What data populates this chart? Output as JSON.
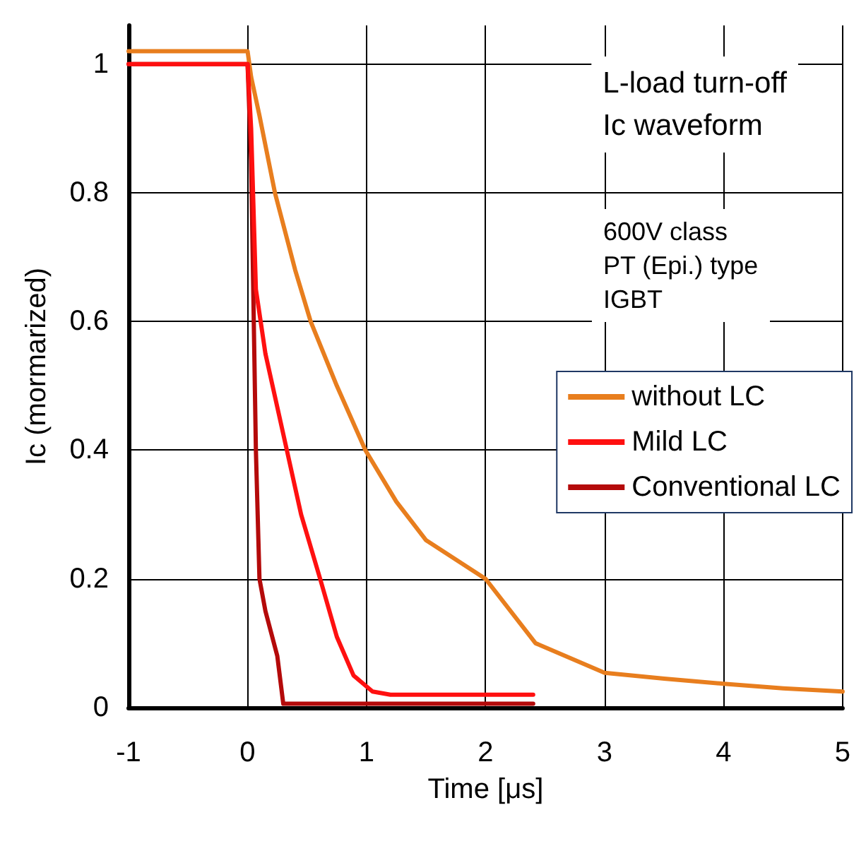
{
  "chart_data": {
    "type": "line",
    "xlabel": "Time [μs]",
    "ylabel": "Ic (mormarized)",
    "xlim": [
      -1,
      5
    ],
    "ylim": [
      0,
      1.06
    ],
    "xticks": [
      -1,
      0,
      1,
      2,
      3,
      4,
      5
    ],
    "yticks": [
      0,
      0.2,
      0.4,
      0.6,
      0.8,
      1
    ],
    "grid": true,
    "legend": "right",
    "marker": "none",
    "line_style": "solid",
    "annotations": [
      "L-load turn-off\nIc waveform",
      "600V class\nPT (Epi.) type\nIGBT"
    ],
    "series": [
      {
        "name": "without LC",
        "color": "#e87e1e",
        "x": [
          -1,
          -0.5,
          0,
          0.03,
          0.1,
          0.23,
          0.4,
          0.53,
          0.75,
          0.99,
          1.25,
          1.5,
          2,
          2.42,
          3,
          3.5,
          4,
          4.5,
          5
        ],
        "values": [
          1.02,
          1.02,
          1.02,
          0.98,
          0.92,
          0.8,
          0.68,
          0.6,
          0.5,
          0.4,
          0.32,
          0.26,
          0.2,
          0.1,
          0.054,
          0.045,
          0.037,
          0.03,
          0.025
        ]
      },
      {
        "name": "Mild LC",
        "color": "#ff1010",
        "x": [
          -1,
          -0.5,
          0,
          0.03,
          0.07,
          0.15,
          0.33,
          0.45,
          0.61,
          0.75,
          0.89,
          1.05,
          1.2,
          1.6,
          2,
          2.4
        ],
        "values": [
          1.0,
          1.0,
          1.0,
          0.9,
          0.65,
          0.55,
          0.4,
          0.3,
          0.2,
          0.11,
          0.05,
          0.025,
          0.02,
          0.02,
          0.02,
          0.02
        ]
      },
      {
        "name": "Conventional LC",
        "color": "#b40a0a",
        "x": [
          -1,
          -0.5,
          0,
          0.03,
          0.07,
          0.1,
          0.15,
          0.25,
          0.3,
          0.6,
          1,
          1.5,
          2,
          2.4
        ],
        "values": [
          1.0,
          1.0,
          1.0,
          0.85,
          0.4,
          0.2,
          0.15,
          0.08,
          0.006,
          0.006,
          0.006,
          0.006,
          0.006,
          0.006
        ]
      }
    ]
  }
}
